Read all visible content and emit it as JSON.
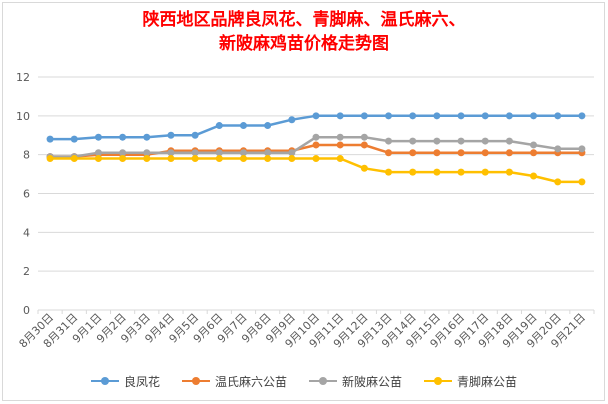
{
  "chart_data": {
    "type": "line",
    "title_lines": [
      "陕西地区品牌良凤花、青脚麻、温氏麻六、",
      "新陂麻鸡苗价格走势图"
    ],
    "xlabel": "",
    "ylabel": "",
    "ylim": [
      0,
      12
    ],
    "yticks": [
      0,
      2,
      4,
      6,
      8,
      10,
      12
    ],
    "grid": true,
    "legend_position": "bottom",
    "categories": [
      "8月30日",
      "8月31日",
      "9月1日",
      "9月2日",
      "9月3日",
      "9月4日",
      "9月5日",
      "9月6日",
      "9月7日",
      "9月8日",
      "9月9日",
      "9月10日",
      "9月11日",
      "9月12日",
      "9月13日",
      "9月14日",
      "9月15日",
      "9月16日",
      "9月17日",
      "9月18日",
      "9月19日",
      "9月20日",
      "9月21日"
    ],
    "series": [
      {
        "name": "良凤花",
        "color": "#5b9bd5",
        "values": [
          8.8,
          8.8,
          8.9,
          8.9,
          8.9,
          9.0,
          9.0,
          9.5,
          9.5,
          9.5,
          9.8,
          10.0,
          10.0,
          10.0,
          10.0,
          10.0,
          10.0,
          10.0,
          10.0,
          10.0,
          10.0,
          10.0,
          10.0
        ]
      },
      {
        "name": "温氏麻六公苗",
        "color": "#ed7d31",
        "values": [
          7.9,
          7.9,
          8.0,
          8.0,
          8.0,
          8.2,
          8.2,
          8.2,
          8.2,
          8.2,
          8.2,
          8.5,
          8.5,
          8.5,
          8.1,
          8.1,
          8.1,
          8.1,
          8.1,
          8.1,
          8.1,
          8.1,
          8.1
        ]
      },
      {
        "name": "新陂麻公苗",
        "color": "#a5a5a5",
        "values": [
          7.9,
          7.9,
          8.1,
          8.1,
          8.1,
          8.1,
          8.1,
          8.1,
          8.1,
          8.1,
          8.1,
          8.9,
          8.9,
          8.9,
          8.7,
          8.7,
          8.7,
          8.7,
          8.7,
          8.7,
          8.5,
          8.3,
          8.3
        ]
      },
      {
        "name": "青脚麻公苗",
        "color": "#ffc000",
        "values": [
          7.8,
          7.8,
          7.8,
          7.8,
          7.8,
          7.8,
          7.8,
          7.8,
          7.8,
          7.8,
          7.8,
          7.8,
          7.8,
          7.3,
          7.1,
          7.1,
          7.1,
          7.1,
          7.1,
          7.1,
          6.9,
          6.6,
          6.6
        ]
      }
    ]
  }
}
